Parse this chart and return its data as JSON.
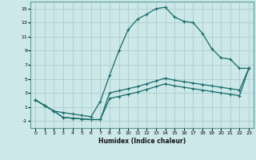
{
  "xlabel": "Humidex (Indice chaleur)",
  "background_color": "#cce8e8",
  "grid_color": "#b0d0d0",
  "line_color": "#1a6b6b",
  "xlim": [
    -0.5,
    23.5
  ],
  "ylim": [
    -2,
    16
  ],
  "xticks": [
    0,
    1,
    2,
    3,
    4,
    5,
    6,
    7,
    8,
    9,
    10,
    11,
    12,
    13,
    14,
    15,
    16,
    17,
    18,
    19,
    20,
    21,
    22,
    23
  ],
  "yticks": [
    -1,
    1,
    3,
    5,
    7,
    9,
    11,
    13,
    15
  ],
  "line1_x": [
    0,
    1,
    2,
    3,
    4,
    5,
    6,
    7,
    8,
    9,
    10,
    11,
    12,
    13,
    14,
    15,
    16,
    17,
    18,
    19,
    20,
    21,
    22,
    23
  ],
  "line1_y": [
    2.0,
    1.2,
    0.4,
    0.2,
    0.0,
    -0.2,
    -0.4,
    1.8,
    5.5,
    9.0,
    12.0,
    13.5,
    14.2,
    15.0,
    15.2,
    13.8,
    13.2,
    13.0,
    11.5,
    9.3,
    8.0,
    7.8,
    6.5,
    6.5
  ],
  "line2_x": [
    0,
    1,
    2,
    3,
    4,
    5,
    6,
    7,
    8,
    9,
    10,
    11,
    12,
    13,
    14,
    15,
    16,
    17,
    18,
    19,
    20,
    21,
    22,
    23
  ],
  "line2_y": [
    2.0,
    1.2,
    0.4,
    -0.5,
    -0.6,
    -0.7,
    -0.8,
    -0.8,
    3.0,
    3.3,
    3.6,
    3.9,
    4.3,
    4.7,
    5.1,
    4.8,
    4.6,
    4.4,
    4.2,
    4.0,
    3.8,
    3.6,
    3.4,
    6.5
  ],
  "line3_x": [
    0,
    1,
    2,
    3,
    4,
    5,
    6,
    7,
    8,
    9,
    10,
    11,
    12,
    13,
    14,
    15,
    16,
    17,
    18,
    19,
    20,
    21,
    22,
    23
  ],
  "line3_y": [
    2.0,
    1.2,
    0.4,
    -0.5,
    -0.6,
    -0.7,
    -0.8,
    -0.8,
    2.2,
    2.5,
    2.8,
    3.1,
    3.5,
    3.9,
    4.3,
    4.0,
    3.8,
    3.6,
    3.4,
    3.2,
    3.0,
    2.8,
    2.6,
    6.5
  ]
}
